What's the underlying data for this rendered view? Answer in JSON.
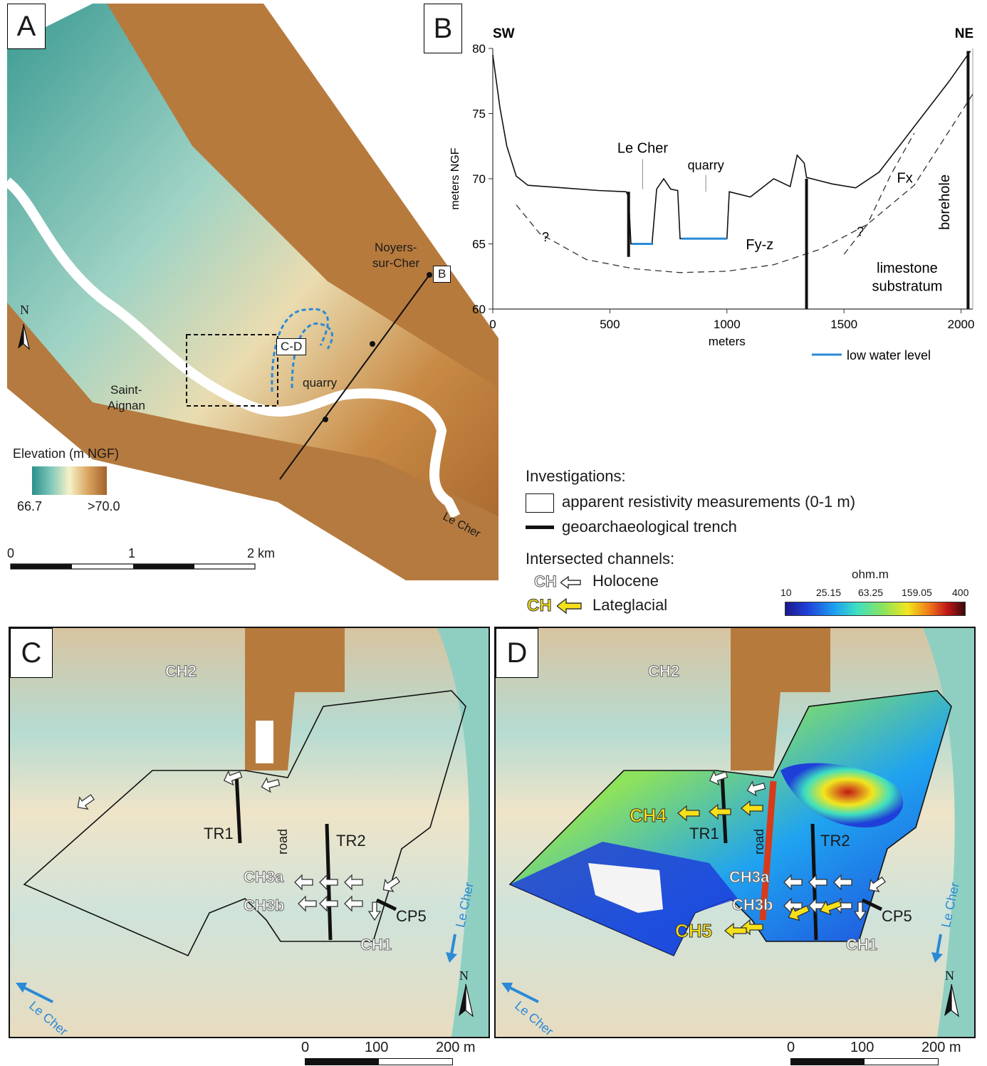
{
  "panels": {
    "a": {
      "letter": "A"
    },
    "b": {
      "letter": "B"
    },
    "c": {
      "letter": "C"
    },
    "d": {
      "letter": "D"
    }
  },
  "map_a": {
    "places": [
      "Noyers-",
      "sur-Cher",
      "Saint-",
      "Aignan"
    ],
    "profile_label": "B",
    "box_label": "C-D",
    "quarry_label": "quarry",
    "river_label": "Le Cher",
    "north": "N",
    "elevation_title": "Elevation (m NGF)",
    "elevation_min": "66.7",
    "elevation_max": ">70.0",
    "scale_ticks": [
      "0",
      "1",
      "2 km"
    ],
    "colors": {
      "low": "#2a8f8c",
      "mid": "#f5f2c8",
      "high": "#a4622a"
    }
  },
  "chart_data": {
    "type": "line",
    "title": "",
    "xlabel": "meters",
    "ylabel": "meters NGF",
    "xlim": [
      0,
      2050
    ],
    "ylim": [
      60,
      80
    ],
    "x_ticks": [
      "0",
      "500",
      "1000",
      "1500",
      "2000"
    ],
    "y_ticks": [
      "60",
      "65",
      "70",
      "75",
      "80"
    ],
    "series": [
      {
        "name": "",
        "values": [
          [
            0,
            79.5
          ],
          [
            30,
            75.5
          ],
          [
            60,
            72.5
          ],
          [
            100,
            70.2
          ],
          [
            150,
            69.5
          ],
          [
            300,
            69.3
          ],
          [
            450,
            69.1
          ],
          [
            570,
            69.0
          ],
          [
            580,
            68.6
          ],
          [
            590,
            65.0
          ],
          [
            680,
            65.0
          ],
          [
            700,
            69.2
          ],
          [
            730,
            70.0
          ],
          [
            760,
            69.2
          ],
          [
            790,
            69.1
          ],
          [
            800,
            65.4
          ],
          [
            1000,
            65.4
          ],
          [
            1010,
            69.0
          ],
          [
            1100,
            68.6
          ],
          [
            1200,
            70.0
          ],
          [
            1270,
            69.4
          ],
          [
            1300,
            71.8
          ],
          [
            1330,
            71.2
          ],
          [
            1340,
            70.1
          ],
          [
            1450,
            69.6
          ],
          [
            1550,
            69.3
          ],
          [
            1650,
            70.5
          ],
          [
            1800,
            74.0
          ],
          [
            1950,
            77.5
          ],
          [
            2040,
            79.8
          ]
        ]
      },
      {
        "name": "low water level",
        "values": [
          [
            595,
            65.0
          ],
          [
            685,
            65.0
          ],
          [
            805,
            65.4
          ],
          [
            1000,
            65.4
          ]
        ]
      }
    ],
    "lower_boundary": [
      [
        100,
        68.0
      ],
      [
        200,
        65.8
      ],
      [
        400,
        63.8
      ],
      [
        600,
        63.1
      ],
      [
        800,
        62.8
      ],
      [
        1000,
        62.9
      ],
      [
        1200,
        63.4
      ],
      [
        1400,
        64.6
      ],
      [
        1600,
        66.5
      ],
      [
        1800,
        69.5
      ],
      [
        2050,
        76.5
      ]
    ],
    "upper_boundary": [
      [
        1500,
        64.2
      ],
      [
        1600,
        66.5
      ],
      [
        1700,
        70.3
      ],
      [
        1800,
        73.5
      ]
    ],
    "trenches_x": [
      580,
      1340,
      2030
    ],
    "annotations": {
      "sw": "SW",
      "ne": "NE",
      "le_cher": "Le Cher",
      "quarry": "quarry",
      "fx": "Fx",
      "fyz": "Fy-z",
      "q1": "?",
      "q2": "?",
      "borehole": "borehole",
      "limestone1": "limestone",
      "limestone2": "substratum"
    },
    "legend": "low water level",
    "line_color": "#111111",
    "water_color": "#2b8ad6",
    "grid": false
  },
  "legend_investigations": {
    "title": "Investigations:",
    "resistivity": "apparent resistivity measurements (0-1 m)",
    "trench": "geoarchaeological trench",
    "channels_title": "Intersected channels:",
    "holocene_ch": "CH",
    "holocene": "Holocene",
    "lateglacial_ch": "CH",
    "lateglacial": "Lateglacial",
    "holocene_color": "#ffffff",
    "lateglacial_color": "#f5e01a"
  },
  "resistivity_scale": {
    "unit": "ohm.m",
    "ticks": [
      "10",
      "25.15",
      "63.25",
      "159.05",
      "400"
    ]
  },
  "map_c": {
    "labels": {
      "ch2": "CH2",
      "tr1": "TR1",
      "tr2": "TR2",
      "road": "road",
      "ch3a": "CH3a",
      "ch3b": "CH3b",
      "cp5": "CP5",
      "ch1": "CH1"
    },
    "river1": "Le Cher",
    "river2": "Le Cher",
    "north": "N",
    "scale_ticks": [
      "0",
      "100",
      "200 m"
    ]
  },
  "map_d": {
    "labels": {
      "ch2": "CH2",
      "ch4": "CH4",
      "tr1": "TR1",
      "tr2": "TR2",
      "road": "road",
      "ch3a": "CH3a",
      "ch3b": "CH3b",
      "ch5": "CH5",
      "cp5": "CP5",
      "ch1": "CH1"
    },
    "river1": "Le Cher",
    "river2": "Le Cher",
    "north": "N",
    "scale_ticks": [
      "0",
      "100",
      "200 m"
    ]
  }
}
